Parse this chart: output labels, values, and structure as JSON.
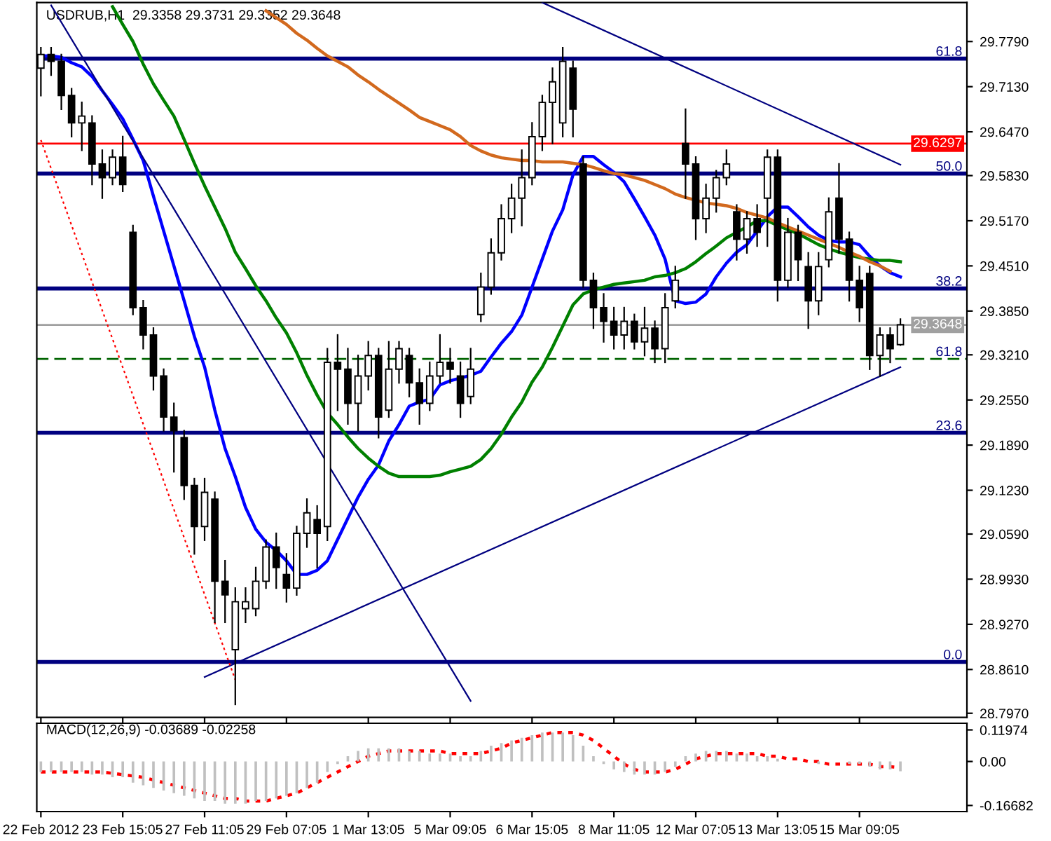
{
  "chart_data": [
    {
      "type": "candlestick",
      "title": "USDRUB,H1  29.3358 29.3731 29.3352 29.3648",
      "categories": [
        null,
        null,
        null,
        null,
        null,
        null,
        null,
        null,
        null,
        null,
        null,
        null,
        null,
        null,
        null,
        null,
        null,
        null,
        null,
        null,
        null,
        null,
        null,
        null,
        null,
        null,
        null,
        null,
        null,
        null,
        null,
        null,
        null,
        null,
        null,
        null,
        null,
        null,
        null,
        null,
        null,
        null,
        null,
        null,
        null,
        null,
        null,
        null,
        null,
        null,
        null,
        null,
        null,
        null,
        null,
        null,
        null,
        null,
        null,
        null,
        null,
        null,
        null,
        null,
        null,
        null,
        null,
        null,
        null,
        null,
        null,
        null,
        null,
        null,
        null,
        null,
        null,
        null,
        null,
        null,
        null,
        null,
        null,
        null,
        null
      ],
      "ohlc": [
        [
          29.74,
          29.77,
          29.7,
          29.76
        ],
        [
          29.76,
          29.77,
          29.73,
          29.75
        ],
        [
          29.75,
          29.76,
          29.68,
          29.7
        ],
        [
          29.7,
          29.71,
          29.64,
          29.66
        ],
        [
          29.66,
          29.69,
          29.62,
          29.67
        ],
        [
          29.66,
          29.67,
          29.57,
          29.6
        ],
        [
          29.6,
          29.62,
          29.55,
          29.58
        ],
        [
          29.58,
          29.62,
          29.57,
          29.61
        ],
        [
          29.61,
          29.64,
          29.56,
          29.57
        ],
        [
          29.5,
          29.51,
          29.38,
          29.39
        ],
        [
          29.39,
          29.4,
          29.33,
          29.35
        ],
        [
          29.35,
          29.36,
          29.27,
          29.29
        ],
        [
          29.29,
          29.3,
          29.21,
          29.23
        ],
        [
          29.23,
          29.25,
          29.15,
          29.21
        ],
        [
          29.2,
          29.21,
          29.11,
          29.13
        ],
        [
          29.13,
          29.14,
          29.03,
          29.07
        ],
        [
          29.07,
          29.14,
          29.05,
          29.12
        ],
        [
          29.11,
          29.12,
          28.93,
          28.99
        ],
        [
          28.99,
          29.02,
          28.93,
          28.97
        ],
        [
          28.89,
          28.98,
          28.81,
          28.96
        ],
        [
          28.95,
          28.98,
          28.93,
          28.96
        ],
        [
          28.95,
          29.01,
          28.94,
          28.99
        ],
        [
          28.99,
          29.05,
          28.98,
          29.04
        ],
        [
          29.04,
          29.06,
          28.98,
          29.01
        ],
        [
          29.0,
          29.03,
          28.96,
          28.98
        ],
        [
          28.98,
          29.07,
          28.97,
          29.06
        ],
        [
          29.06,
          29.11,
          29.04,
          29.09
        ],
        [
          29.08,
          29.1,
          29.01,
          29.06
        ],
        [
          29.07,
          29.33,
          29.05,
          29.31
        ],
        [
          29.31,
          29.35,
          29.24,
          29.3
        ],
        [
          29.3,
          29.33,
          29.22,
          29.25
        ],
        [
          29.25,
          29.32,
          29.21,
          29.29
        ],
        [
          29.29,
          29.34,
          29.27,
          29.32
        ],
        [
          29.32,
          29.33,
          29.2,
          29.23
        ],
        [
          29.24,
          29.34,
          29.23,
          29.3
        ],
        [
          29.3,
          29.34,
          29.28,
          29.33
        ],
        [
          29.32,
          29.33,
          29.26,
          29.28
        ],
        [
          29.28,
          29.3,
          29.22,
          29.25
        ],
        [
          29.25,
          29.31,
          29.24,
          29.29
        ],
        [
          29.29,
          29.35,
          29.28,
          29.31
        ],
        [
          29.31,
          29.33,
          29.28,
          29.3
        ],
        [
          29.29,
          29.31,
          29.23,
          29.25
        ],
        [
          29.26,
          29.33,
          29.25,
          29.3
        ],
        [
          29.38,
          29.44,
          29.37,
          29.42
        ],
        [
          29.42,
          29.49,
          29.41,
          29.47
        ],
        [
          29.47,
          29.54,
          29.46,
          29.52
        ],
        [
          29.52,
          29.57,
          29.5,
          29.55
        ],
        [
          29.55,
          29.62,
          29.51,
          29.58
        ],
        [
          29.58,
          29.66,
          29.57,
          29.64
        ],
        [
          29.64,
          29.7,
          29.62,
          29.69
        ],
        [
          29.69,
          29.74,
          29.63,
          29.72
        ],
        [
          29.66,
          29.77,
          29.64,
          29.75
        ],
        [
          29.74,
          29.75,
          29.64,
          29.68
        ],
        [
          29.6,
          29.61,
          29.42,
          29.43
        ],
        [
          29.43,
          29.44,
          29.36,
          29.39
        ],
        [
          29.39,
          29.41,
          29.34,
          29.37
        ],
        [
          29.37,
          29.39,
          29.33,
          29.35
        ],
        [
          29.35,
          29.39,
          29.33,
          29.37
        ],
        [
          29.37,
          29.38,
          29.33,
          29.34
        ],
        [
          29.34,
          29.39,
          29.32,
          29.36
        ],
        [
          29.36,
          29.37,
          29.31,
          29.33
        ],
        [
          29.33,
          29.41,
          29.31,
          29.39
        ],
        [
          29.4,
          29.45,
          29.39,
          29.43
        ],
        [
          29.63,
          29.68,
          29.55,
          29.6
        ],
        [
          29.6,
          29.61,
          29.49,
          29.52
        ],
        [
          29.52,
          29.57,
          29.5,
          29.55
        ],
        [
          29.55,
          29.59,
          29.53,
          29.58
        ],
        [
          29.58,
          29.62,
          29.57,
          29.6
        ],
        [
          29.53,
          29.54,
          29.46,
          29.49
        ],
        [
          29.49,
          29.53,
          29.47,
          29.52
        ],
        [
          29.52,
          29.54,
          29.48,
          29.5
        ],
        [
          29.55,
          29.62,
          29.48,
          29.61
        ],
        [
          29.61,
          29.62,
          29.4,
          29.43
        ],
        [
          29.43,
          29.52,
          29.42,
          29.5
        ],
        [
          29.5,
          29.51,
          29.43,
          29.46
        ],
        [
          29.45,
          29.47,
          29.36,
          29.4
        ],
        [
          29.4,
          29.47,
          29.38,
          29.45
        ],
        [
          29.46,
          29.55,
          29.45,
          29.53
        ],
        [
          29.55,
          29.6,
          29.47,
          29.49
        ],
        [
          29.49,
          29.5,
          29.4,
          29.43
        ],
        [
          29.43,
          29.45,
          29.37,
          29.39
        ],
        [
          29.44,
          29.45,
          29.3,
          29.32
        ],
        [
          29.32,
          29.36,
          29.29,
          29.35
        ],
        [
          29.35,
          29.36,
          29.31,
          29.33
        ],
        [
          29.3358,
          29.3731,
          29.3352,
          29.3648
        ]
      ],
      "series": [
        {
          "type": "line",
          "color": "#0000ff",
          "line_style": "solid",
          "values": [
            29.758,
            29.758,
            29.756,
            29.748,
            29.742,
            29.728,
            29.707,
            29.687,
            29.666,
            29.636,
            29.605,
            29.553,
            29.502,
            29.451,
            29.4,
            29.348,
            29.303,
            29.24,
            29.184,
            29.143,
            29.098,
            29.066,
            29.047,
            29.035,
            29.02,
            29.0,
            29.0,
            29.006,
            29.02,
            29.051,
            29.082,
            29.113,
            29.139,
            29.16,
            29.195,
            29.219,
            29.246,
            29.252,
            29.256,
            29.277,
            29.283,
            29.287,
            29.291,
            29.297,
            29.318,
            29.338,
            29.355,
            29.379,
            29.42,
            29.461,
            29.502,
            29.533,
            29.584,
            29.611,
            29.611,
            29.599,
            29.588,
            29.574,
            29.549,
            29.523,
            29.496,
            29.461,
            29.4,
            29.396,
            29.398,
            29.41,
            29.435,
            29.455,
            29.471,
            29.482,
            29.502,
            29.523,
            29.537,
            29.537,
            29.523,
            29.508,
            29.496,
            29.488,
            29.486,
            29.486,
            29.482,
            29.465,
            29.451,
            29.441,
            29.435
          ]
        },
        {
          "type": "line",
          "color": "#008000",
          "line_style": "solid",
          "values": [
            null,
            null,
            null,
            null,
            null,
            null,
            null,
            29.83,
            29.804,
            29.779,
            29.746,
            29.717,
            29.693,
            29.67,
            29.636,
            29.601,
            29.568,
            29.537,
            29.506,
            29.471,
            29.447,
            29.422,
            29.4,
            29.375,
            29.353,
            29.324,
            29.291,
            29.262,
            29.236,
            29.219,
            29.201,
            29.184,
            29.17,
            29.158,
            29.148,
            29.143,
            29.143,
            29.143,
            29.143,
            29.145,
            29.15,
            29.154,
            29.158,
            29.168,
            29.184,
            29.205,
            29.23,
            29.252,
            29.281,
            29.303,
            29.332,
            29.363,
            29.394,
            29.41,
            29.416,
            29.42,
            29.424,
            29.426,
            29.428,
            29.43,
            29.435,
            29.437,
            29.441,
            29.447,
            29.457,
            29.469,
            29.48,
            29.492,
            29.5,
            29.508,
            29.517,
            29.517,
            29.51,
            29.504,
            29.498,
            29.49,
            29.482,
            29.476,
            29.471,
            29.467,
            29.463,
            29.461,
            29.459,
            29.459,
            29.457
          ]
        },
        {
          "type": "line",
          "color": "#d2691e",
          "line_style": "solid",
          "values": [
            null,
            null,
            null,
            null,
            null,
            null,
            null,
            null,
            null,
            null,
            null,
            null,
            null,
            null,
            null,
            null,
            null,
            null,
            null,
            null,
            null,
            null,
            29.824,
            29.814,
            29.804,
            29.791,
            29.781,
            29.769,
            29.758,
            29.75,
            29.742,
            29.73,
            29.72,
            29.709,
            29.699,
            29.689,
            29.679,
            29.668,
            29.662,
            29.656,
            29.65,
            29.64,
            29.627,
            29.619,
            29.613,
            29.609,
            29.607,
            29.605,
            29.605,
            29.603,
            29.603,
            29.603,
            29.601,
            29.599,
            29.595,
            29.59,
            29.586,
            29.584,
            29.58,
            29.576,
            29.57,
            29.564,
            29.556,
            29.551,
            29.547,
            29.543,
            29.541,
            29.539,
            29.535,
            29.529,
            29.525,
            29.521,
            29.514,
            29.508,
            29.502,
            29.496,
            29.49,
            29.484,
            29.478,
            29.471,
            29.465,
            29.457,
            29.451,
            29.443,
            null
          ]
        },
        {
          "type": "line",
          "color": "#000080",
          "line_style": "solid",
          "values": [
            null,
            29.832,
            null,
            null,
            null,
            null,
            null,
            null,
            null,
            null,
            null,
            null,
            null,
            null,
            null,
            null,
            null,
            null,
            null,
            null,
            null,
            null,
            null,
            null,
            null,
            null,
            null,
            null,
            null,
            null,
            null,
            null,
            null,
            null,
            null,
            null,
            null,
            null,
            null,
            null,
            null,
            null,
            28.815,
            null,
            null,
            null,
            null,
            null,
            null,
            null,
            null,
            null,
            null,
            null,
            null,
            null,
            null,
            null,
            null,
            null,
            null,
            null,
            null,
            null,
            null,
            null,
            null,
            null,
            null,
            null,
            null,
            null,
            null,
            null,
            null,
            null,
            null,
            null,
            null,
            null,
            null,
            null,
            null,
            null,
            null
          ]
        },
        {
          "type": "line",
          "color": "#000080",
          "line_style": "solid",
          "values": [
            null,
            null,
            null,
            null,
            null,
            null,
            null,
            null,
            null,
            null,
            null,
            null,
            null,
            null,
            null,
            null,
            28.85,
            null,
            null,
            null,
            null,
            null,
            null,
            null,
            null,
            null,
            null,
            null,
            null,
            null,
            null,
            null,
            null,
            null,
            null,
            null,
            null,
            null,
            null,
            null,
            null,
            null,
            null,
            null,
            null,
            null,
            null,
            null,
            null,
            null,
            null,
            null,
            null,
            null,
            null,
            null,
            null,
            null,
            null,
            null,
            null,
            null,
            null,
            null,
            null,
            null,
            null,
            null,
            null,
            null,
            null,
            null,
            null,
            null,
            null,
            null,
            null,
            null,
            null,
            null,
            null,
            null,
            null,
            null,
            29.303
          ]
        },
        {
          "type": "line",
          "color": "#000080",
          "line_style": "solid",
          "values": [
            null,
            null,
            null,
            null,
            null,
            null,
            null,
            null,
            null,
            null,
            null,
            null,
            null,
            null,
            null,
            null,
            null,
            null,
            null,
            null,
            null,
            null,
            null,
            null,
            null,
            null,
            null,
            null,
            null,
            null,
            null,
            null,
            null,
            null,
            null,
            null,
            null,
            null,
            null,
            null,
            null,
            null,
            null,
            null,
            null,
            null,
            null,
            null,
            null,
            29.836,
            null,
            null,
            null,
            null,
            null,
            null,
            null,
            null,
            null,
            null,
            null,
            null,
            null,
            null,
            null,
            null,
            null,
            null,
            null,
            null,
            null,
            null,
            null,
            null,
            null,
            null,
            null,
            null,
            null,
            null,
            null,
            null,
            null,
            null,
            29.599
          ]
        },
        {
          "type": "line",
          "color": "#ff0000",
          "line_style": "dotted",
          "values": [
            29.635,
            null,
            null,
            null,
            null,
            null,
            null,
            null,
            null,
            null,
            null,
            null,
            null,
            null,
            null,
            null,
            null,
            null,
            null,
            28.846,
            null,
            null,
            null,
            null,
            null,
            null,
            null,
            null,
            null,
            null,
            null,
            null,
            null,
            null,
            null,
            null,
            null,
            null,
            null,
            null,
            null,
            null,
            null,
            null,
            null,
            null,
            null,
            null,
            null,
            null,
            null,
            null,
            null,
            null,
            null,
            null,
            null,
            null,
            null,
            null,
            null,
            null,
            null,
            null,
            null,
            null,
            null,
            null,
            null,
            null,
            null,
            null,
            null,
            null,
            null,
            null,
            null,
            null,
            null,
            null,
            null,
            null,
            null,
            null,
            null
          ]
        }
      ],
      "ref_lines": [
        {
          "axis": "y",
          "value": 29.754,
          "color": "#000080",
          "line_style": "solid"
        },
        {
          "axis": "y",
          "value": 29.586,
          "color": "#000080",
          "line_style": "solid"
        },
        {
          "axis": "y",
          "value": 29.418,
          "color": "#000080",
          "line_style": "solid"
        },
        {
          "axis": "y",
          "value": 29.207,
          "color": "#000080",
          "line_style": "solid"
        },
        {
          "axis": "y",
          "value": 28.872,
          "color": "#000080",
          "line_style": "solid"
        },
        {
          "axis": "y",
          "value": 29.315,
          "color": "#006400",
          "line_style": "dashed"
        },
        {
          "axis": "y",
          "value": 29.6297,
          "label": "29.6297",
          "color": "#ff0000",
          "line_style": "solid"
        },
        {
          "axis": "y",
          "value": 29.3648,
          "label": "29.3648",
          "color": "#a0a0a0",
          "line_style": "solid"
        }
      ],
      "ylim": [
        28.791,
        29.836
      ],
      "yticks": [
        {
          "value": 29.779,
          "label": "29.7790"
        },
        {
          "value": 29.713,
          "label": "29.7130"
        },
        {
          "value": 29.647,
          "label": "29.6470"
        },
        {
          "value": 29.583,
          "label": "29.5830"
        },
        {
          "value": 29.517,
          "label": "29.5170"
        },
        {
          "value": 29.451,
          "label": "29.4510"
        },
        {
          "value": 29.385,
          "label": "29.3850"
        },
        {
          "value": 29.321,
          "label": "29.3210"
        },
        {
          "value": 29.255,
          "label": "29.2550"
        },
        {
          "value": 29.189,
          "label": "29.1890"
        },
        {
          "value": 29.123,
          "label": "29.1230"
        },
        {
          "value": 29.059,
          "label": "29.0590"
        },
        {
          "value": 28.993,
          "label": "28.9930"
        },
        {
          "value": 28.927,
          "label": "28.9270"
        },
        {
          "value": 28.861,
          "label": "28.8610"
        },
        {
          "value": 28.797,
          "label": "28.7970"
        }
      ],
      "annotations": [
        {
          "text": "61.8",
          "y": 29.754
        },
        {
          "text": "50.0",
          "y": 29.586
        },
        {
          "text": "38.2",
          "y": 29.418
        },
        {
          "text": "23.6",
          "y": 29.207
        },
        {
          "text": "0.0",
          "y": 28.872
        },
        {
          "text": "61.8",
          "y": 29.315
        }
      ],
      "tick_labels": "y",
      "grid": false,
      "legend": false
    },
    {
      "type": "bar",
      "title": "MACD(12,26,9) -0.03689 -0.02258",
      "categories": [
        "22 Feb 2012",
        null,
        null,
        null,
        null,
        null,
        null,
        null,
        "23 Feb 15:05",
        null,
        null,
        null,
        null,
        null,
        null,
        null,
        "27 Feb 11:05",
        null,
        null,
        null,
        null,
        null,
        null,
        null,
        "29 Feb 07:05",
        null,
        null,
        null,
        null,
        null,
        null,
        null,
        "1 Mar 13:05",
        null,
        null,
        null,
        null,
        null,
        null,
        null,
        "5 Mar 09:05",
        null,
        null,
        null,
        null,
        null,
        null,
        null,
        "6 Mar 15:05",
        null,
        null,
        null,
        null,
        null,
        null,
        null,
        "8 Mar 11:05",
        null,
        null,
        null,
        null,
        null,
        null,
        null,
        "12 Mar 07:05",
        null,
        null,
        null,
        null,
        null,
        null,
        null,
        "13 Mar 13:05",
        null,
        null,
        null,
        null,
        null,
        null,
        null,
        "15 Mar 09:05",
        null,
        null,
        null,
        null
      ],
      "series": [
        {
          "type": "bar",
          "color": "#c0c0c0",
          "values": [
            -0.04,
            -0.04,
            -0.04,
            -0.04,
            -0.04,
            -0.05,
            -0.05,
            -0.06,
            -0.06,
            -0.08,
            -0.09,
            -0.1,
            -0.11,
            -0.12,
            -0.13,
            -0.14,
            -0.15,
            -0.15,
            -0.16,
            -0.16,
            -0.16,
            -0.15,
            -0.15,
            -0.14,
            -0.13,
            -0.12,
            -0.1,
            -0.08,
            -0.04,
            -0.01,
            0.02,
            0.04,
            0.05,
            0.05,
            0.05,
            0.05,
            0.04,
            0.04,
            0.03,
            0.03,
            0.03,
            0.02,
            0.02,
            0.04,
            0.06,
            0.07,
            0.08,
            0.09,
            0.1,
            0.11,
            0.11,
            0.11,
            0.1,
            0.06,
            0.02,
            -0.01,
            -0.03,
            -0.04,
            -0.05,
            -0.05,
            -0.05,
            -0.04,
            -0.02,
            0.02,
            0.03,
            0.04,
            0.04,
            0.04,
            0.03,
            0.03,
            0.02,
            0.02,
            0.01,
            0.0,
            0.0,
            0.0,
            -0.01,
            0.0,
            0.0,
            -0.01,
            -0.01,
            -0.02,
            -0.03,
            -0.03,
            -0.037
          ]
        },
        {
          "type": "line",
          "color": "#ff0000",
          "line_style": "dotted",
          "values": [
            -0.04,
            -0.04,
            -0.04,
            -0.04,
            -0.04,
            -0.04,
            -0.04,
            -0.045,
            -0.05,
            -0.055,
            -0.06,
            -0.07,
            -0.08,
            -0.09,
            -0.1,
            -0.11,
            -0.12,
            -0.13,
            -0.14,
            -0.14,
            -0.15,
            -0.15,
            -0.15,
            -0.14,
            -0.13,
            -0.12,
            -0.1,
            -0.08,
            -0.06,
            -0.04,
            -0.02,
            0.0,
            0.02,
            0.03,
            0.04,
            0.04,
            0.04,
            0.04,
            0.04,
            0.04,
            0.03,
            0.03,
            0.03,
            0.03,
            0.04,
            0.05,
            0.07,
            0.08,
            0.09,
            0.1,
            0.11,
            0.11,
            0.11,
            0.1,
            0.08,
            0.05,
            0.02,
            -0.01,
            -0.03,
            -0.04,
            -0.04,
            -0.04,
            -0.03,
            -0.01,
            0.01,
            0.02,
            0.03,
            0.03,
            0.03,
            0.03,
            0.03,
            0.02,
            0.02,
            0.01,
            0.01,
            0.0,
            0.0,
            -0.01,
            -0.01,
            -0.01,
            -0.01,
            -0.01,
            -0.02,
            -0.02,
            -0.023
          ]
        }
      ],
      "ylim": [
        -0.19,
        0.145
      ],
      "yticks": [
        0.11974,
        {
          "value": 0.0,
          "label": "0.00"
        },
        -0.16682
      ],
      "grid": false,
      "legend": false
    }
  ]
}
